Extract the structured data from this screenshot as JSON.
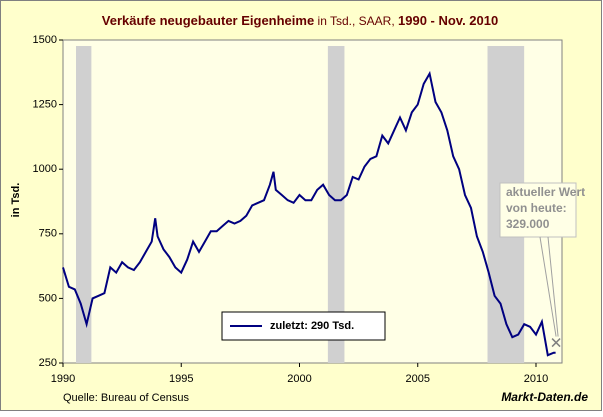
{
  "chart_data": {
    "type": "line",
    "title_parts": [
      "Verkäufe neugebauter Eigenheime",
      " in Tsd., SAAR, ",
      "1990 - Nov. 2010"
    ],
    "ylabel": "in Tsd.",
    "source": "Quelle: Bureau of Census",
    "brand": "Markt-Daten.de",
    "xlim": [
      1990,
      2011.1
    ],
    "ylim": [
      250,
      1500
    ],
    "xticks": [
      1990,
      1995,
      2000,
      2005,
      2010
    ],
    "yticks": [
      250,
      500,
      750,
      1000,
      1250,
      1500
    ],
    "shaded_ranges": [
      [
        1990.55,
        1991.2
      ],
      [
        2001.2,
        2001.9
      ],
      [
        2007.95,
        2009.5
      ]
    ],
    "series": [
      {
        "name": "zuletzt: 290  Tsd.",
        "color": "#000080",
        "x": [
          1990,
          1990.25,
          1990.5,
          1990.75,
          1991,
          1991.25,
          1991.5,
          1991.75,
          1992,
          1992.25,
          1992.5,
          1992.75,
          1993,
          1993.25,
          1993.5,
          1993.75,
          1993.9,
          1994,
          1994.25,
          1994.5,
          1994.75,
          1995,
          1995.25,
          1995.5,
          1995.75,
          1996,
          1996.25,
          1996.5,
          1996.75,
          1997,
          1997.25,
          1997.5,
          1997.75,
          1998,
          1998.25,
          1998.5,
          1998.75,
          1998.9,
          1999,
          1999.25,
          1999.5,
          1999.75,
          2000,
          2000.25,
          2000.5,
          2000.75,
          2001,
          2001.25,
          2001.5,
          2001.75,
          2002,
          2002.25,
          2002.5,
          2002.75,
          2003,
          2003.25,
          2003.5,
          2003.75,
          2004,
          2004.25,
          2004.5,
          2004.75,
          2005,
          2005.25,
          2005.5,
          2005.75,
          2006,
          2006.25,
          2006.5,
          2006.75,
          2007,
          2007.25,
          2007.5,
          2007.75,
          2008,
          2008.25,
          2008.5,
          2008.75,
          2009,
          2009.25,
          2009.5,
          2009.75,
          2010,
          2010.25,
          2010.5,
          2010.75,
          2010.83
        ],
        "values": [
          620,
          545,
          535,
          480,
          400,
          500,
          510,
          520,
          620,
          600,
          640,
          620,
          610,
          640,
          680,
          720,
          810,
          740,
          690,
          660,
          620,
          600,
          650,
          720,
          680,
          720,
          760,
          760,
          780,
          800,
          790,
          800,
          820,
          860,
          870,
          880,
          940,
          990,
          920,
          900,
          880,
          870,
          900,
          880,
          880,
          920,
          940,
          900,
          880,
          880,
          900,
          970,
          960,
          1010,
          1040,
          1050,
          1130,
          1100,
          1150,
          1200,
          1150,
          1220,
          1250,
          1330,
          1370,
          1260,
          1220,
          1150,
          1050,
          1000,
          900,
          850,
          740,
          680,
          600,
          510,
          480,
          400,
          350,
          360,
          400,
          390,
          360,
          410,
          280,
          290,
          290
        ]
      }
    ],
    "annotation": {
      "lines": [
        "aktueller Wert",
        "von heute:",
        "329.000"
      ],
      "x": 2010.85,
      "y": 329
    }
  }
}
